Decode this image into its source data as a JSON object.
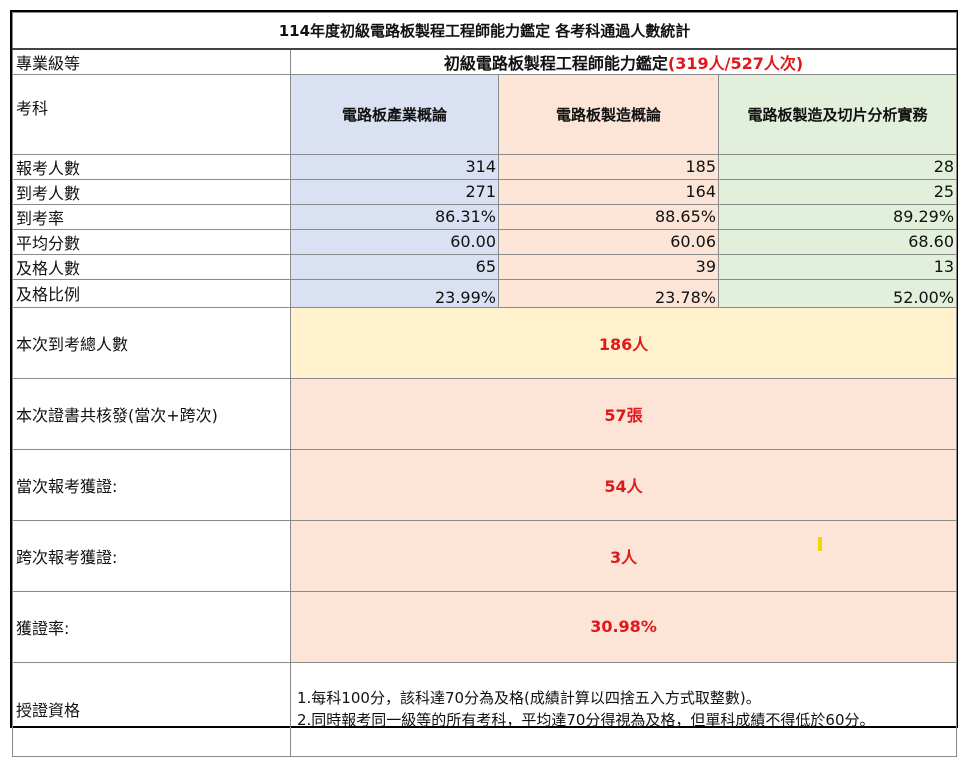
{
  "title": "114年度初級電路板製程工程師能力鑑定 各考科通過人數統計",
  "level_label": "專業級等",
  "level_value_prefix": "初級電路板製程工程師能力鑑定",
  "level_value_count": "(319人/527人次)",
  "subject_label": "考科",
  "subjects": [
    "電路板產業概論",
    "電路板製造概論",
    "電路板製造及切片分析實務"
  ],
  "stats": [
    {
      "label": "報考人數",
      "values": [
        "314",
        "185",
        "28"
      ]
    },
    {
      "label": "到考人數",
      "values": [
        "271",
        "164",
        "25"
      ]
    },
    {
      "label": "到考率",
      "values": [
        "86.31%",
        "88.65%",
        "89.29%"
      ]
    },
    {
      "label": "平均分數",
      "values": [
        "60.00",
        "60.06",
        "68.60"
      ]
    },
    {
      "label": "及格人數",
      "values": [
        "65",
        "39",
        "13"
      ]
    },
    {
      "label": "及格比例",
      "values": [
        "23.99%",
        "23.78%",
        "52.00%"
      ]
    }
  ],
  "summary": [
    {
      "label": "本次到考總人數",
      "value": "186人"
    },
    {
      "label": "本次證書共核發(當次+跨次)",
      "value": "57張"
    },
    {
      "label": "當次報考獲證:",
      "value": "54人"
    },
    {
      "label": "跨次報考獲證:",
      "value": "3人"
    },
    {
      "label": "獲證率:",
      "value": "30.98%"
    }
  ],
  "qualification_label": "授證資格",
  "qualification_rules": [
    "1.每科100分，該科達70分為及格(成績計算以四捨五入方式取整數)。",
    "2.同時報考同一級等的所有考科，平均達70分得視為及格，但單科成績不得低於60分。"
  ],
  "colors": {
    "subject1_bg": "#d9e1f2",
    "subject2_bg": "#fce4d6",
    "subject3_bg": "#e2efda",
    "highlight_yellow": "#fff2cc",
    "value_red": "#e0181c"
  }
}
